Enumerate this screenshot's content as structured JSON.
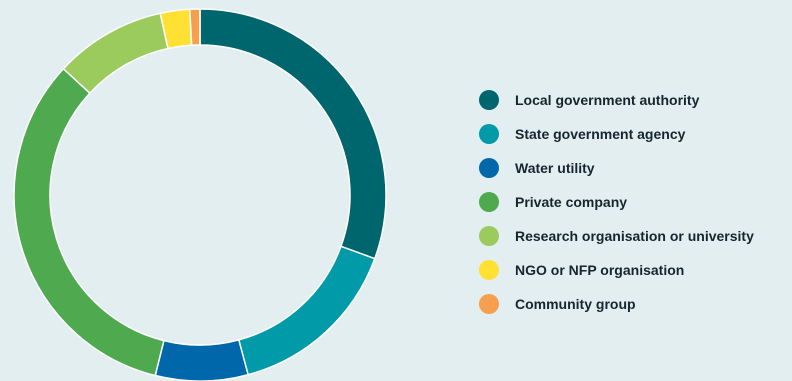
{
  "chart_data": {
    "type": "pie",
    "title": "",
    "legend_position": "right",
    "categories": [
      "Local government authority",
      "State government agency",
      "Water utility",
      "Private company",
      "Research organisation or university",
      "NGO or NFP organisation",
      "Community group"
    ],
    "values": [
      31.2,
      15.6,
      8.2,
      33.7,
      9.9,
      2.6,
      0.9
    ],
    "colors": [
      "#00666e",
      "#009aa8",
      "#0068aa",
      "#4faa4f",
      "#9ccb5d",
      "#ffe033",
      "#f6a04d"
    ]
  }
}
